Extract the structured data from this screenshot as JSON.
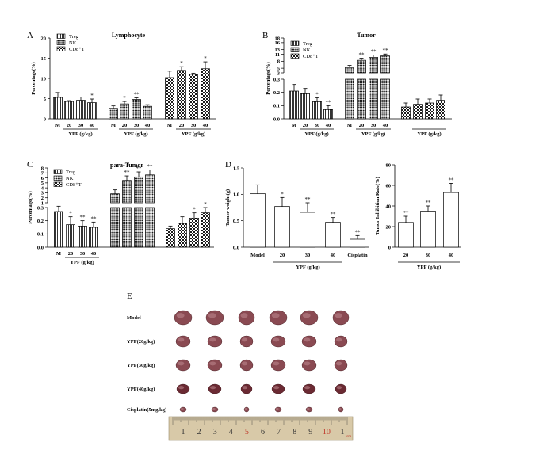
{
  "panel_labels": [
    "A",
    "B",
    "C",
    "D",
    "E"
  ],
  "legend": [
    "Treg",
    "NK",
    "CD8⁺T"
  ],
  "colors": {
    "pattern_fill": "#1a1a1a",
    "bar_fill": "#ffffff",
    "stroke": "#000000",
    "ruler": "#d8c9a8"
  },
  "chart_data": [
    {
      "id": "A",
      "type": "bar",
      "title": "Lymphocyte",
      "ylabel": "Percentage(%)",
      "ylim": [
        0,
        20
      ],
      "yticks": [
        "0",
        "5",
        "10",
        "15",
        "20"
      ],
      "groups": [
        {
          "series": "Treg",
          "categories": [
            "M",
            "20",
            "30",
            "40"
          ],
          "values": [
            5.3,
            4.3,
            4.6,
            4.0
          ],
          "errors": [
            1.2,
            0.2,
            0.8,
            0.9
          ],
          "stars": [
            "",
            "",
            "",
            "*"
          ]
        },
        {
          "series": "NK",
          "categories": [
            "M",
            "20",
            "30",
            "40"
          ],
          "values": [
            2.6,
            3.7,
            4.8,
            3.1
          ],
          "errors": [
            0.6,
            0.6,
            0.4,
            0.4
          ],
          "stars": [
            "",
            "*",
            "**",
            ""
          ]
        },
        {
          "series": "CD8⁺T",
          "categories": [
            "M",
            "20",
            "30",
            "40"
          ],
          "values": [
            10.2,
            12.0,
            11.0,
            12.4
          ],
          "errors": [
            1.6,
            0.9,
            0.3,
            1.7
          ],
          "stars": [
            "",
            "*",
            "",
            "*"
          ]
        }
      ],
      "xgroup_label": "YPF (g/kg)"
    },
    {
      "id": "B",
      "type": "bar",
      "title": "Tumor",
      "ylabel": "Percentage(%)",
      "yticks": [
        "0.0",
        "0.1",
        "0.2",
        "0.3",
        "3",
        "5",
        "8",
        "11",
        "13",
        "16",
        "18"
      ],
      "groups": [
        {
          "series": "Treg",
          "categories": [
            "M",
            "20",
            "30",
            "40"
          ],
          "values": [
            0.21,
            0.19,
            0.13,
            0.07
          ],
          "errors": [
            0.05,
            0.04,
            0.03,
            0.03
          ],
          "stars": [
            "",
            "",
            "*",
            "**"
          ]
        },
        {
          "series": "NK",
          "categories": [
            "M",
            "20",
            "30",
            "40"
          ],
          "values": [
            5.3,
            8.4,
            9.7,
            10.3
          ],
          "errors": [
            0.9,
            0.9,
            1.0,
            0.8
          ],
          "stars": [
            "",
            "**",
            "**",
            "**"
          ]
        },
        {
          "series": "CD8⁺T",
          "categories": [
            "M",
            "20",
            "30",
            "40"
          ],
          "values": [
            0.09,
            0.11,
            0.12,
            0.14
          ],
          "errors": [
            0.03,
            0.04,
            0.03,
            0.04
          ],
          "stars": [
            "",
            "",
            "",
            ""
          ]
        }
      ],
      "xgroup_label": "YPF (g/kg)"
    },
    {
      "id": "C",
      "type": "bar",
      "title": "para-Tumor",
      "ylabel": "Percentage(%)",
      "yticks": [
        "0.0",
        "0.1",
        "0.2",
        "0.3",
        "1",
        "2",
        "3",
        "4",
        "5",
        "6",
        "7",
        "8"
      ],
      "groups": [
        {
          "series": "Treg",
          "categories": [
            "M",
            "20",
            "30",
            "40"
          ],
          "values": [
            0.27,
            0.17,
            0.16,
            0.15
          ],
          "errors": [
            0.04,
            0.06,
            0.04,
            0.04
          ],
          "stars": [
            "",
            "*",
            "**",
            "**"
          ]
        },
        {
          "series": "NK",
          "categories": [
            "M",
            "20",
            "30",
            "40"
          ],
          "values": [
            2.8,
            5.5,
            6.2,
            6.6
          ],
          "errors": [
            0.8,
            0.9,
            1.0,
            1.0
          ],
          "stars": [
            "",
            "**",
            "**",
            "**"
          ]
        },
        {
          "series": "CD8⁺T",
          "categories": [
            "M",
            "20",
            "30",
            "40"
          ],
          "values": [
            0.14,
            0.18,
            0.22,
            0.26
          ],
          "errors": [
            0.02,
            0.05,
            0.04,
            0.04
          ],
          "stars": [
            "",
            "",
            "*",
            "*"
          ]
        }
      ],
      "xgroup_label": "YPF (g/kg)"
    },
    {
      "id": "D1",
      "type": "bar",
      "title": "",
      "ylabel": "Tumor weight(g)",
      "ylim": [
        0,
        1.5
      ],
      "yticks": [
        "0.0",
        "0.5",
        "1.0",
        "1.5"
      ],
      "categories": [
        "Model",
        "20",
        "30",
        "40",
        "Cisplatin"
      ],
      "values": [
        1.01,
        0.77,
        0.66,
        0.47,
        0.15
      ],
      "errors": [
        0.17,
        0.17,
        0.18,
        0.09,
        0.07
      ],
      "stars": [
        "",
        "*",
        "**",
        "**",
        "**"
      ],
      "xgroup_label": "YPF (g/kg)"
    },
    {
      "id": "D2",
      "type": "bar",
      "title": "",
      "ylabel": "Tumor Inhibition Rate(%)",
      "ylim": [
        0,
        80
      ],
      "yticks": [
        "0",
        "20",
        "40",
        "60",
        "80"
      ],
      "categories": [
        "20",
        "30",
        "40"
      ],
      "values": [
        24,
        35,
        53
      ],
      "errors": [
        6,
        5,
        9
      ],
      "stars": [
        "**",
        "**",
        "**"
      ],
      "xgroup_label": "YPF (g/kg)"
    }
  ],
  "photo": {
    "row_labels": [
      "Model",
      "YPF(20g/kg)",
      "YPF(30g/kg)",
      "YPF(40g/kg)",
      "Cisplatin(5mg/kg)"
    ],
    "ruler_numbers": [
      "1",
      "2",
      "3",
      "4",
      "5",
      "6",
      "7",
      "8",
      "9",
      "10",
      "1"
    ],
    "ruler_unit": "cm"
  }
}
